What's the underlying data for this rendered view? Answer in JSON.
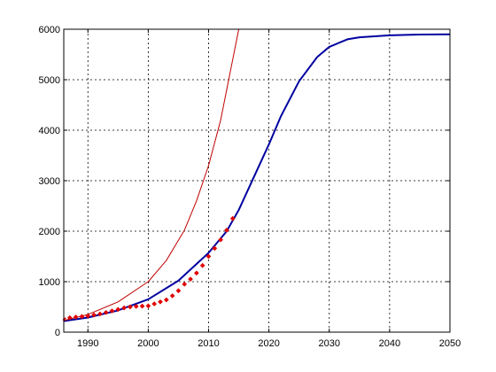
{
  "chart_data": {
    "type": "line",
    "title": "",
    "xlabel": "",
    "ylabel": "",
    "xlim": [
      1986,
      2050
    ],
    "ylim": [
      0,
      6000
    ],
    "x_ticks": [
      1990,
      2000,
      2010,
      2020,
      2030,
      2040,
      2050
    ],
    "y_ticks": [
      0,
      1000,
      2000,
      3000,
      4000,
      5000,
      6000
    ],
    "grid": true,
    "legend": "none",
    "colors": {
      "logistic": "#0000a0",
      "exponential": "#c00000",
      "observed": "#e00000",
      "grid": "#000000",
      "axes": "#000000"
    },
    "series": [
      {
        "kind": "line",
        "color_key": "logistic",
        "x": [
          1986,
          1990,
          1995,
          2000,
          2005,
          2010,
          2013,
          2015,
          2018,
          2020,
          2022,
          2025,
          2028,
          2030,
          2033,
          2035,
          2040,
          2045,
          2050
        ],
        "y": [
          220,
          290,
          430,
          650,
          1020,
          1570,
          2000,
          2420,
          3200,
          3720,
          4280,
          4970,
          5450,
          5650,
          5800,
          5840,
          5880,
          5895,
          5900
        ]
      },
      {
        "kind": "line",
        "color_key": "exponential",
        "x": [
          1986,
          1990,
          1995,
          2000,
          2003,
          2006,
          2008,
          2010,
          2012,
          2013,
          2014,
          2015
        ],
        "y": [
          230,
          350,
          600,
          1000,
          1420,
          2020,
          2600,
          3300,
          4200,
          4800,
          5400,
          6000
        ]
      },
      {
        "kind": "scatter",
        "color_key": "observed",
        "x": [
          1986,
          1987,
          1988,
          1989,
          1990,
          1991,
          1992,
          1993,
          1994,
          1995,
          1996,
          1997,
          1998,
          1999,
          2000,
          2001,
          2002,
          2003,
          2004,
          2005,
          2006,
          2007,
          2008,
          2009,
          2010,
          2011,
          2012,
          2013,
          2014
        ],
        "y": [
          270,
          285,
          300,
          310,
          320,
          340,
          360,
          390,
          420,
          450,
          480,
          500,
          510,
          515,
          520,
          560,
          600,
          640,
          720,
          820,
          950,
          1050,
          1170,
          1320,
          1500,
          1660,
          1830,
          2020,
          2250
        ]
      }
    ]
  }
}
